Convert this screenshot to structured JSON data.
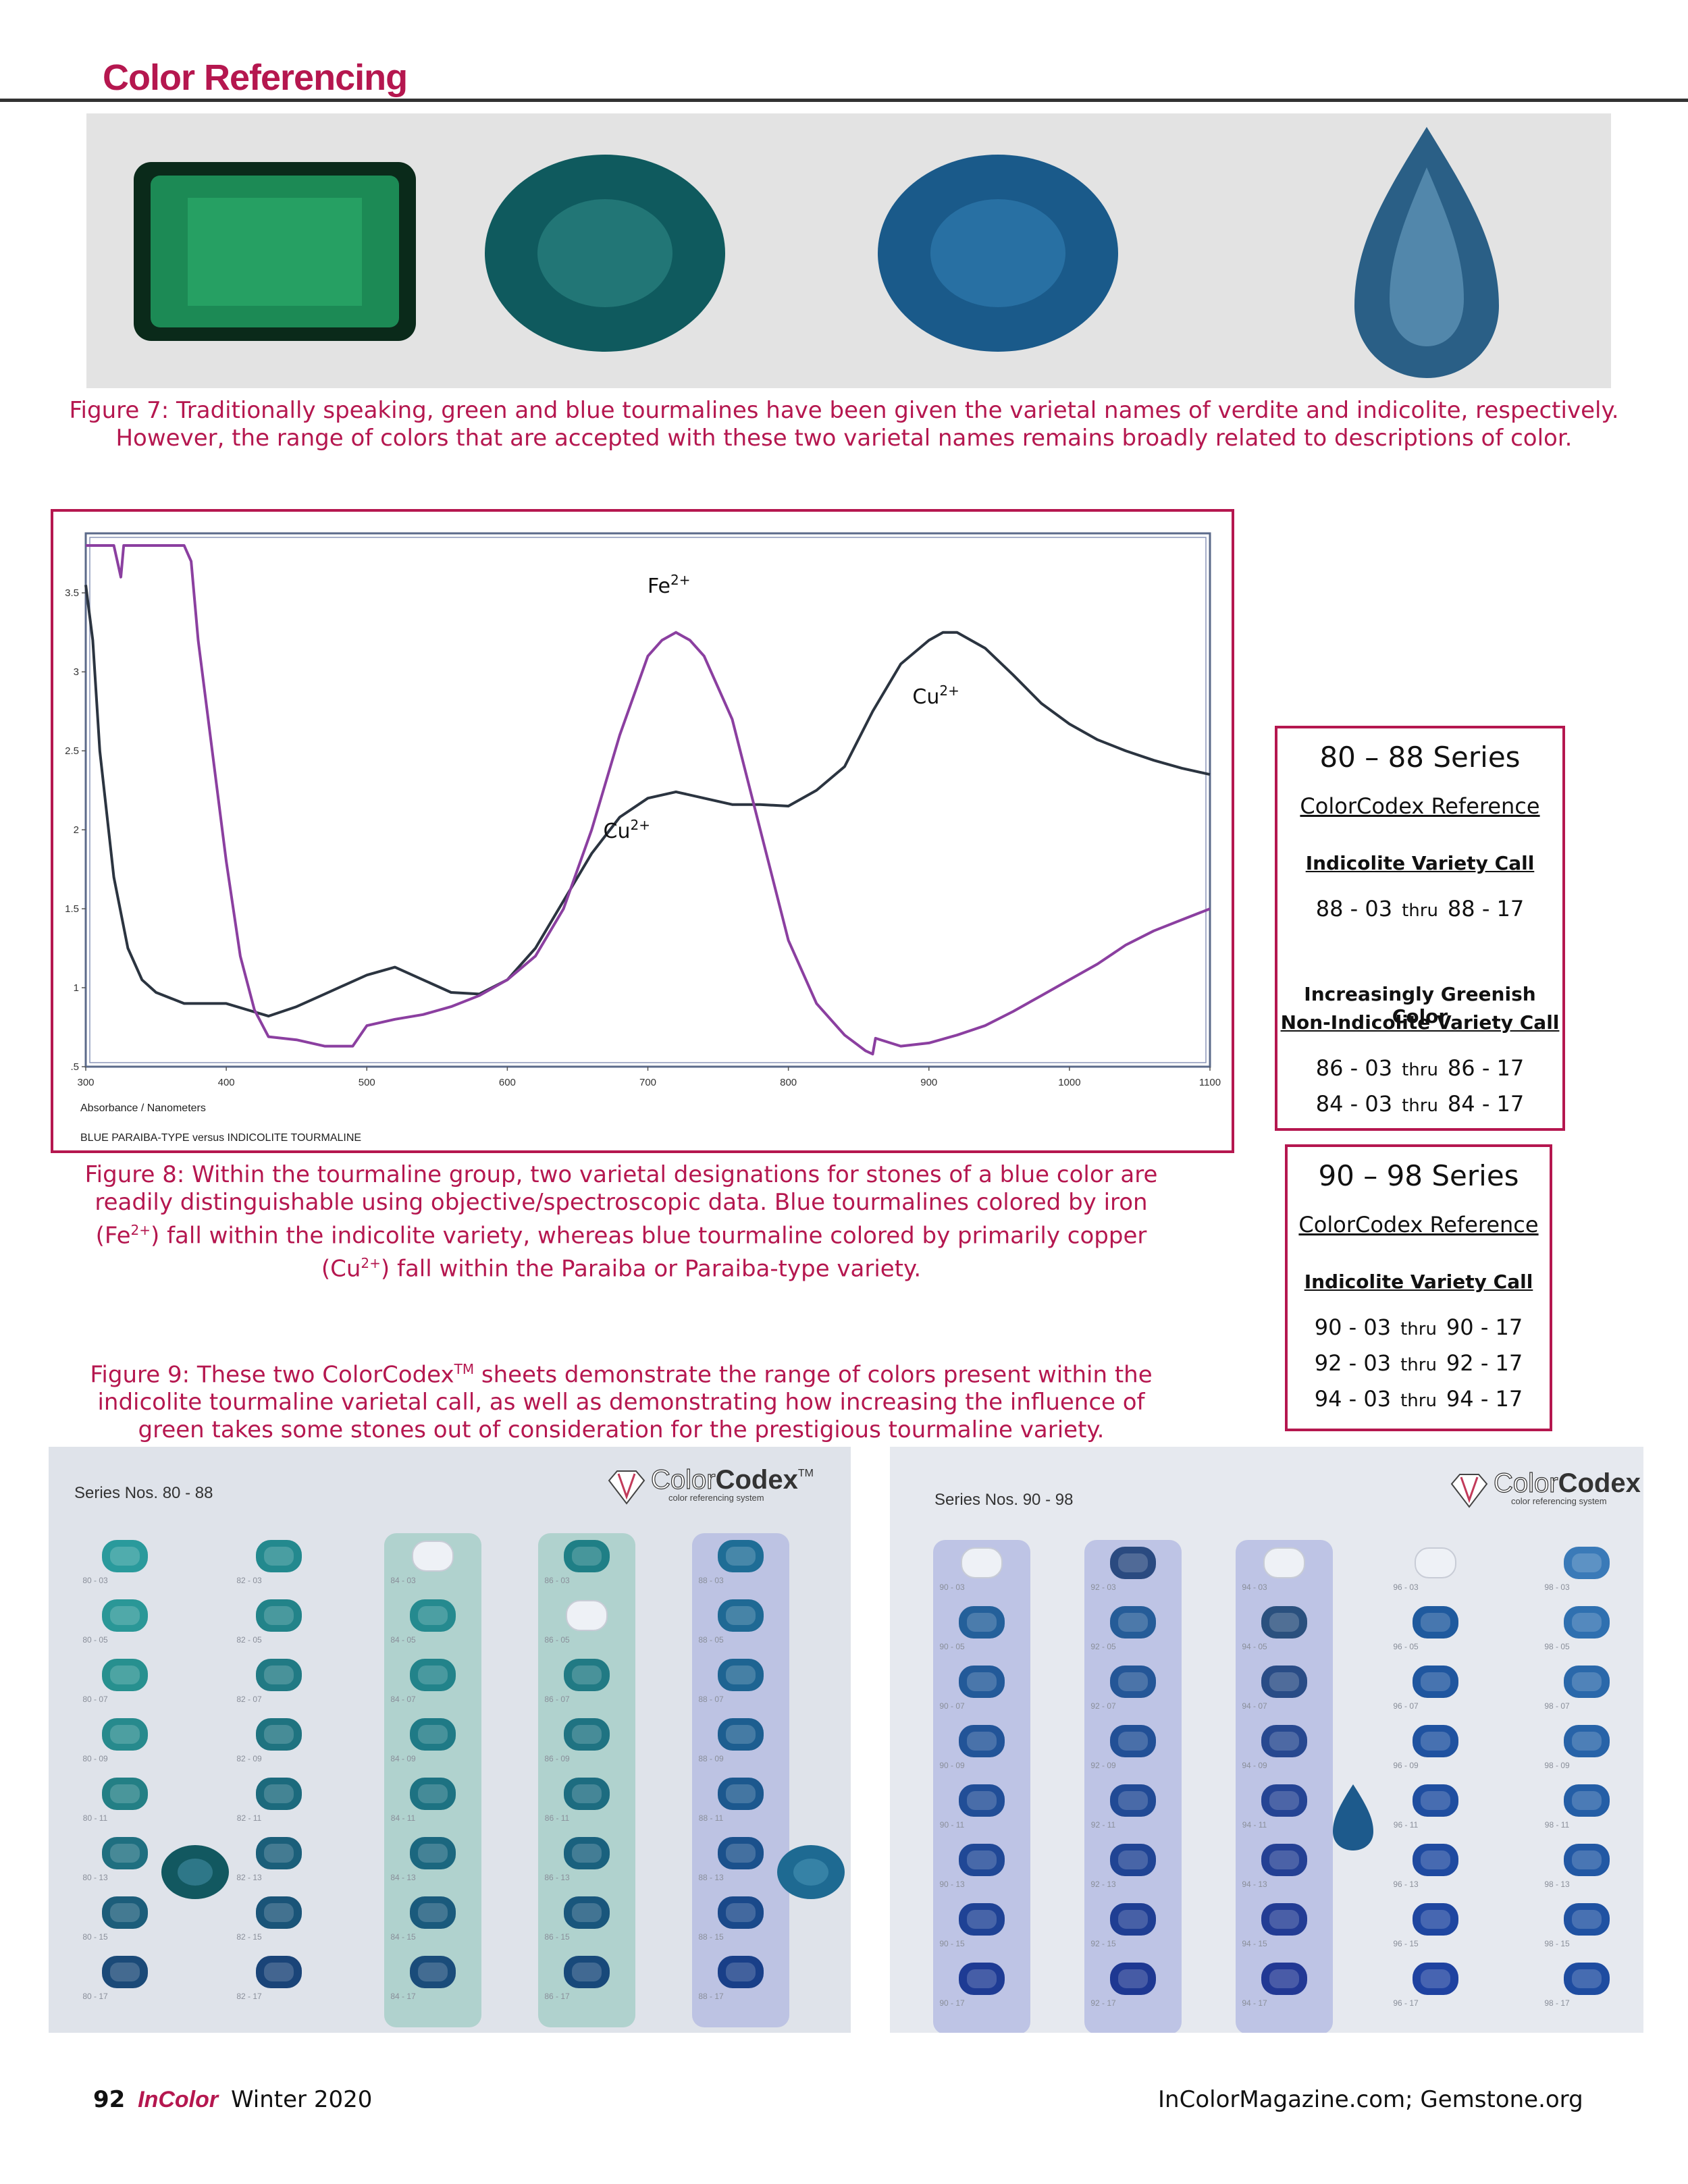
{
  "header": {
    "section_title": "Color Referencing"
  },
  "figure7": {
    "caption": "Figure 7: Traditionally speaking, green and blue tourmalines have been given the varietal names of verdite and indicolite, respectively. However, the range of colors that are accepted with these two varietal names remains broadly related to descriptions of color.",
    "gems": [
      {
        "shape": "emerald-cut",
        "color": "#1c8a55"
      },
      {
        "shape": "oval",
        "color": "#0f5a5e"
      },
      {
        "shape": "oval",
        "color": "#1a5a8a"
      },
      {
        "shape": "pear",
        "color": "#2a5f86"
      }
    ]
  },
  "figure8": {
    "caption_parts": [
      "Figure 8: Within the tourmaline group, two varietal designations for stones of a blue color are readily distinguishable using objective/spectroscopic data. Blue tourmalines colored by iron (Fe",
      "2+",
      ") fall within the indicolite variety, whereas blue tourmaline colored by primarily copper (Cu",
      "2+",
      ") fall within the Paraiba or Paraiba-type variety."
    ]
  },
  "figure9": {
    "caption_parts": [
      "Figure 9: These two ColorCodex",
      "TM",
      " sheets demonstrate the range of colors present within the indicolite tourmaline varietal call, as well as demonstrating how increasing the influence of green takes some stones out of consideration for the prestigious tourmaline variety."
    ]
  },
  "chart_data": {
    "type": "line",
    "xlabel": "Absorbance / Nanometers",
    "subtitle": "BLUE PARAIBA-TYPE versus INDICOLITE TOURMALINE",
    "xlim": [
      300,
      1100
    ],
    "ylim": [
      0.5,
      3.8
    ],
    "xticks": [
      300,
      400,
      500,
      600,
      700,
      800,
      900,
      1000,
      1100
    ],
    "yticks": [
      {
        "value": 0.5,
        "label": ".5"
      },
      {
        "value": 1,
        "label": "1"
      },
      {
        "value": 1.5,
        "label": "1.5"
      },
      {
        "value": 2,
        "label": "2"
      },
      {
        "value": 2.5,
        "label": "2.5"
      },
      {
        "value": 3,
        "label": "3"
      },
      {
        "value": 3.5,
        "label": "3.5"
      }
    ],
    "series": [
      {
        "color": "#2b3440",
        "x": [
          300,
          305,
          310,
          320,
          330,
          340,
          350,
          370,
          400,
          430,
          450,
          470,
          500,
          520,
          540,
          560,
          580,
          600,
          620,
          640,
          660,
          680,
          700,
          720,
          740,
          760,
          780,
          800,
          820,
          840,
          860,
          880,
          900,
          910,
          920,
          940,
          960,
          980,
          1000,
          1020,
          1040,
          1060,
          1080,
          1100
        ],
        "y": [
          3.55,
          3.2,
          2.5,
          1.7,
          1.25,
          1.05,
          0.97,
          0.9,
          0.9,
          0.82,
          0.88,
          0.96,
          1.08,
          1.13,
          1.05,
          0.97,
          0.96,
          1.05,
          1.25,
          1.55,
          1.85,
          2.08,
          2.2,
          2.24,
          2.2,
          2.16,
          2.16,
          2.15,
          2.25,
          2.4,
          2.75,
          3.05,
          3.2,
          3.25,
          3.25,
          3.15,
          2.98,
          2.8,
          2.67,
          2.57,
          2.5,
          2.44,
          2.39,
          2.35
        ]
      },
      {
        "color": "#8b3fa0",
        "x": [
          300,
          320,
          325,
          327,
          330,
          370,
          375,
          380,
          390,
          400,
          410,
          420,
          430,
          450,
          470,
          490,
          500,
          520,
          540,
          560,
          580,
          600,
          620,
          640,
          660,
          680,
          700,
          710,
          720,
          730,
          740,
          760,
          780,
          800,
          820,
          840,
          855,
          860,
          862,
          880,
          900,
          920,
          940,
          960,
          980,
          1000,
          1020,
          1040,
          1060,
          1080,
          1100
        ],
        "y": [
          3.8,
          3.8,
          3.6,
          3.8,
          3.8,
          3.8,
          3.7,
          3.2,
          2.5,
          1.8,
          1.2,
          0.86,
          0.69,
          0.67,
          0.63,
          0.63,
          0.76,
          0.8,
          0.83,
          0.88,
          0.95,
          1.05,
          1.2,
          1.5,
          2.0,
          2.6,
          3.1,
          3.2,
          3.25,
          3.2,
          3.1,
          2.7,
          2.0,
          1.3,
          0.9,
          0.7,
          0.6,
          0.58,
          0.68,
          0.63,
          0.65,
          0.7,
          0.76,
          0.85,
          0.95,
          1.05,
          1.15,
          1.27,
          1.36,
          1.43,
          1.5
        ]
      }
    ],
    "annotations": [
      {
        "base": "Fe",
        "sup": "2+",
        "x": 715,
        "y": 3.5
      },
      {
        "base": "Cu",
        "sup": "2+",
        "x": 905,
        "y": 2.8
      },
      {
        "base": "Cu",
        "sup": "2+",
        "x": 685,
        "y": 1.95
      }
    ]
  },
  "refbox1": {
    "title": "80 – 88 Series",
    "subtitle": "ColorCodex Reference",
    "call": "Indicolite Variety Call",
    "rows": [
      {
        "from": "88 - 03",
        "thru": "thru",
        "to": "88 - 17"
      }
    ],
    "note": "Increasingly Greenish Color",
    "call2": "Non-Indicolite Variety Call",
    "rows2": [
      {
        "from": "86 - 03",
        "thru": "thru",
        "to": "86 - 17"
      },
      {
        "from": "84 - 03",
        "thru": "thru",
        "to": "84 - 17"
      }
    ]
  },
  "refbox2": {
    "title": "90 – 98 Series",
    "subtitle": "ColorCodex Reference",
    "call": "Indicolite Variety Call",
    "rows": [
      {
        "from": "90 - 03",
        "thru": "thru",
        "to": "90 - 17"
      },
      {
        "from": "92 - 03",
        "thru": "thru",
        "to": "92 - 17"
      },
      {
        "from": "94 - 03",
        "thru": "thru",
        "to": "94 - 17"
      }
    ]
  },
  "sheets": [
    {
      "series_label": "Series Nos. 80 - 88",
      "brand_a": "Color",
      "brand_b": "Codex",
      "brand_tm": "TM",
      "tagline": "color referencing system",
      "background": "#dfe3ea",
      "columns": [
        {
          "num": "80",
          "highlight": null,
          "colors": [
            "#2a9a9c",
            "#2a9797",
            "#27908f",
            "#278a8d",
            "#237f85",
            "#1f6f80",
            "#1c5d7a",
            "#1b4a78"
          ]
        },
        {
          "num": "82",
          "highlight": null,
          "colors": [
            "#23898e",
            "#228389",
            "#217a84",
            "#1f7380",
            "#1c6a7d",
            "#1b5f7a",
            "#1a5478",
            "#1a4478"
          ]
        },
        {
          "num": "84",
          "highlight": "#a8cfc9",
          "colors": [
            null,
            "#258a8f",
            "#22838a",
            "#1f7a86",
            "#1d7282",
            "#1b677f",
            "#1a5a7c",
            "#1a4c7a"
          ]
        },
        {
          "num": "86",
          "highlight": "#a8cfc9",
          "colors": [
            "#1f7f86",
            null,
            "#217a84",
            "#1f7382",
            "#1d6c80",
            "#1a617e",
            "#19567c",
            "#18497a"
          ]
        },
        {
          "num": "88",
          "highlight": "#b7bde2",
          "colors": [
            "#1f6d96",
            "#1f6994",
            "#1e6492",
            "#1d5e90",
            "#1c588e",
            "#1b518c",
            "#1a498a",
            "#193f88"
          ]
        }
      ],
      "extra_gems": [
        {
          "after_column": 0,
          "row": 5,
          "shape": "oval",
          "color": "#125860"
        },
        {
          "after_column": 4,
          "row": 5,
          "shape": "oval",
          "color": "#1e6a92"
        }
      ]
    },
    {
      "series_label": "Series Nos. 90 - 98",
      "brand_a": "Color",
      "brand_b": "Codex",
      "brand_tm": "",
      "tagline": "color referencing system",
      "background": "#e6e9ef",
      "columns": [
        {
          "num": "90",
          "highlight": "#b6bde3",
          "colors": [
            null,
            "#24609a",
            "#235a99",
            "#225498",
            "#214e97",
            "#204896",
            "#1f4295",
            "#1e3b94"
          ]
        },
        {
          "num": "92",
          "highlight": "#b6bde3",
          "colors": [
            "#2a4a80",
            "#255c98",
            "#245697",
            "#225096",
            "#214a95",
            "#204494",
            "#1f3e93",
            "#1e3892"
          ]
        },
        {
          "num": "94",
          "highlight": "#b6bde3",
          "colors": [
            null,
            "#2a507e",
            "#294c86",
            "#274890",
            "#254494",
            "#244094",
            "#233c94",
            "#223894"
          ]
        },
        {
          "num": "96",
          "highlight": null,
          "colors": [
            null,
            "#1f5a9e",
            "#1f569f",
            "#1f52a0",
            "#1f4ea0",
            "#1f4aa0",
            "#1f46a0",
            "#1f42a0"
          ]
        },
        {
          "num": "98",
          "highlight": null,
          "colors": [
            "#3a7ab8",
            "#2f70b0",
            "#2a68aa",
            "#2763a8",
            "#245ea6",
            "#2258a4",
            "#2052a2",
            "#1e4ca0"
          ]
        }
      ],
      "extra_gems": [
        {
          "after_column": 2,
          "row": 4,
          "shape": "pear",
          "color": "#1d5a8c"
        }
      ]
    }
  ],
  "footer": {
    "page": "92",
    "magazine": "InColor",
    "issue": "Winter 2020",
    "right": "InColorMagazine.com; Gemstone.org"
  }
}
